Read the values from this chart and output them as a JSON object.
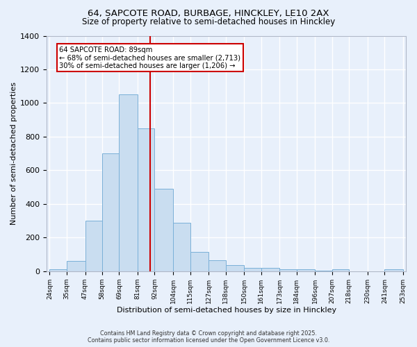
{
  "title1": "64, SAPCOTE ROAD, BURBAGE, HINCKLEY, LE10 2AX",
  "title2": "Size of property relative to semi-detached houses in Hinckley",
  "xlabel": "Distribution of semi-detached houses by size in Hinckley",
  "ylabel": "Number of semi-detached properties",
  "bin_edges": [
    24,
    35,
    47,
    58,
    69,
    81,
    92,
    104,
    115,
    127,
    138,
    150,
    161,
    173,
    184,
    196,
    207,
    218,
    230,
    241,
    253
  ],
  "bar_heights": [
    10,
    60,
    300,
    700,
    1050,
    850,
    490,
    290,
    115,
    65,
    35,
    20,
    20,
    10,
    10,
    5,
    10,
    0,
    0,
    10
  ],
  "bar_color": "#c9ddf0",
  "bar_edgecolor": "#7ab0d8",
  "vline_x": 89,
  "vline_color": "#cc0000",
  "annotation_line1": "64 SAPCOTE ROAD: 89sqm",
  "annotation_line2": "← 68% of semi-detached houses are smaller (2,713)",
  "annotation_line3": "30% of semi-detached houses are larger (1,206) →",
  "annotation_box_edgecolor": "#cc0000",
  "annotation_box_facecolor": "#ffffff",
  "footer_text": "Contains HM Land Registry data © Crown copyright and database right 2025.\nContains public sector information licensed under the Open Government Licence v3.0.",
  "ylim": [
    0,
    1400
  ],
  "background_color": "#e8f0fb",
  "plot_bg_color": "#e8f0fb",
  "grid_color": "#ffffff",
  "tick_labels": [
    "24sqm",
    "35sqm",
    "47sqm",
    "58sqm",
    "69sqm",
    "81sqm",
    "92sqm",
    "104sqm",
    "115sqm",
    "127sqm",
    "138sqm",
    "150sqm",
    "161sqm",
    "173sqm",
    "184sqm",
    "196sqm",
    "207sqm",
    "218sqm",
    "230sqm",
    "241sqm",
    "253sqm"
  ],
  "title1_fontsize": 9.5,
  "title2_fontsize": 8.5
}
